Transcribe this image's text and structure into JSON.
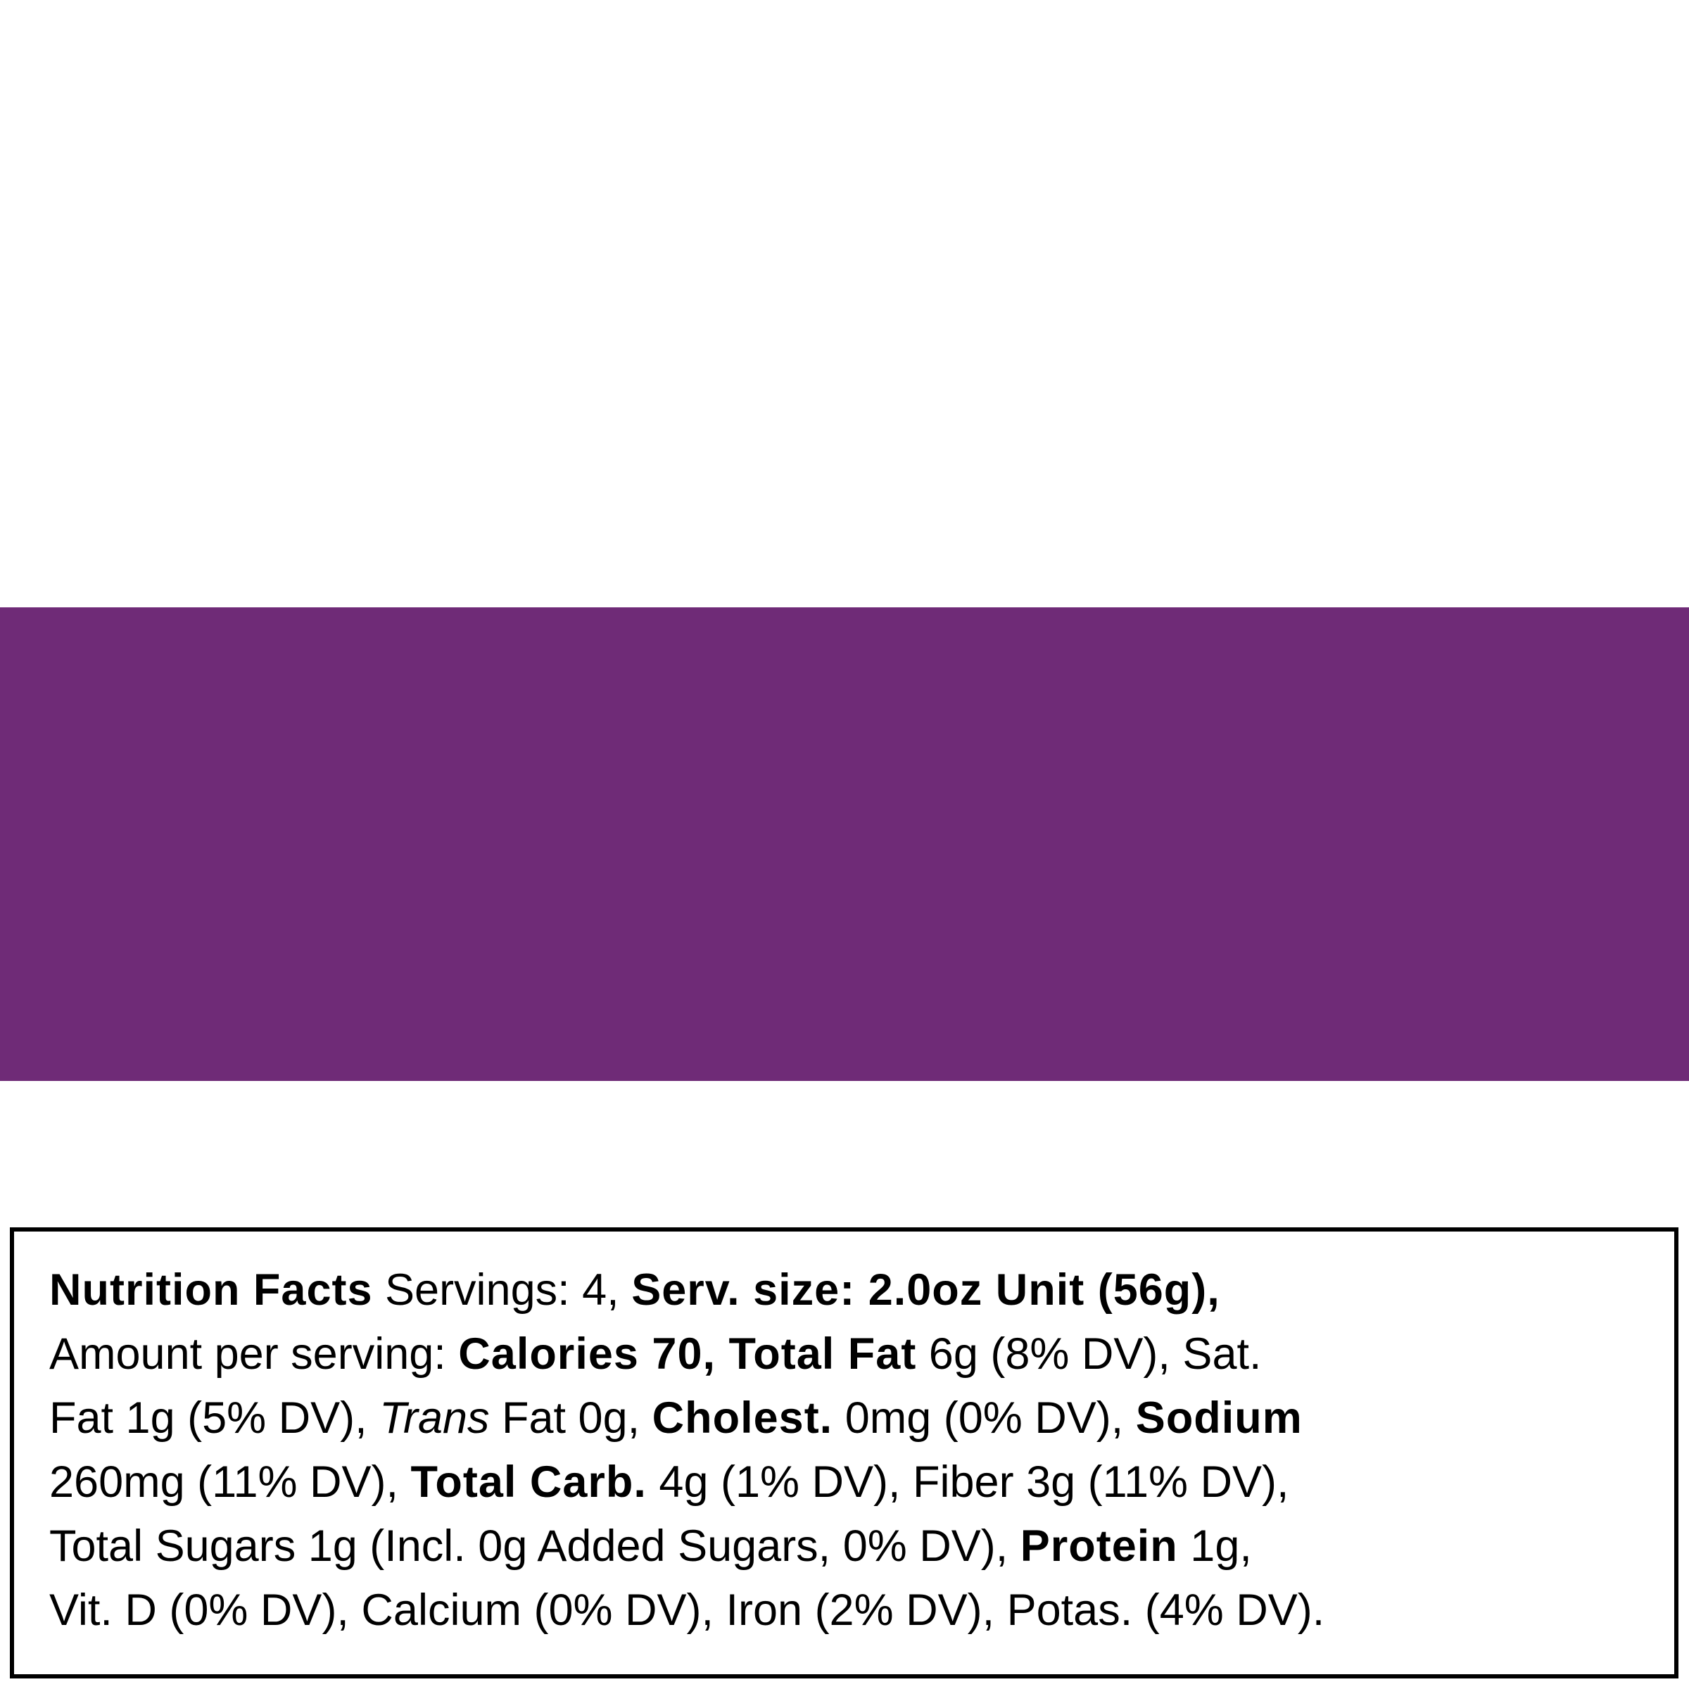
{
  "colors": {
    "band": "#6f2b77",
    "border": "#000000",
    "text": "#000000"
  },
  "label": {
    "lines": [
      [
        {
          "t": "Nutrition Facts",
          "s": "b"
        },
        {
          "t": " Servings: 4, ",
          "s": ""
        },
        {
          "t": "Serv. size: 2.0oz Unit (56g),",
          "s": "b"
        }
      ],
      [
        {
          "t": "Amount per serving: ",
          "s": ""
        },
        {
          "t": "Calories 70, Total Fat",
          "s": "b"
        },
        {
          "t": " 6g (8% DV), Sat.",
          "s": ""
        }
      ],
      [
        {
          "t": "Fat 1g (5% DV), ",
          "s": ""
        },
        {
          "t": "Trans",
          "s": "i"
        },
        {
          "t": " Fat 0g, ",
          "s": ""
        },
        {
          "t": "Cholest.",
          "s": "b"
        },
        {
          "t": " 0mg (0% DV), ",
          "s": ""
        },
        {
          "t": "Sodium",
          "s": "b"
        }
      ],
      [
        {
          "t": "260mg (11% DV), ",
          "s": ""
        },
        {
          "t": "Total Carb.",
          "s": "b"
        },
        {
          "t": " 4g (1% DV), Fiber 3g (11% DV),",
          "s": ""
        }
      ],
      [
        {
          "t": "Total Sugars 1g (Incl. 0g Added Sugars, 0% DV), ",
          "s": ""
        },
        {
          "t": "Protein",
          "s": "b"
        },
        {
          "t": " 1g,",
          "s": ""
        }
      ],
      [
        {
          "t": "Vit. D (0% DV), Calcium (0% DV), Iron (2% DV), Potas. (4% DV).",
          "s": ""
        }
      ]
    ]
  }
}
